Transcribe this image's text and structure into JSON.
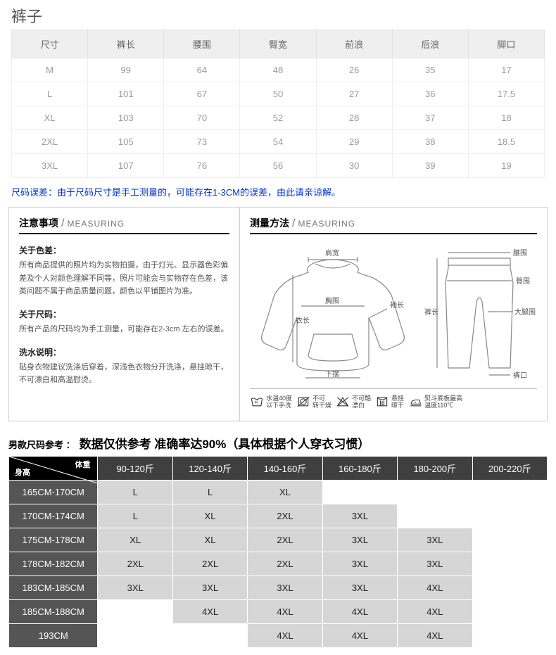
{
  "title": "裤子",
  "sizeTable": {
    "headers": [
      "尺寸",
      "裤长",
      "腰围",
      "臀宽",
      "前浪",
      "后浪",
      "脚口"
    ],
    "rows": [
      [
        "M",
        "99",
        "64",
        "48",
        "26",
        "35",
        "17"
      ],
      [
        "L",
        "101",
        "67",
        "50",
        "27",
        "36",
        "17.5"
      ],
      [
        "XL",
        "103",
        "70",
        "52",
        "28",
        "37",
        "18"
      ],
      [
        "2XL",
        "105",
        "73",
        "54",
        "29",
        "38",
        "18.5"
      ],
      [
        "3XL",
        "107",
        "76",
        "56",
        "30",
        "39",
        "19"
      ]
    ]
  },
  "note": "尺码误差：由于尺码尺寸是手工测量的，可能存在1-3CM的误差，由此请亲谅解。",
  "measuring": {
    "left": {
      "header_cn": "注意事项",
      "header_en": "MEASURING",
      "paras": [
        {
          "title": "关于色差：",
          "body": "所有商品提供的照片均为实物拍摄，由于灯光、显示器色彩偏差及个人对颜色理解不同等，照片可能会与实物存在色差，该类问题不属于商品质量问题，颜色以平铺图片为准。"
        },
        {
          "title": "关于尺码：",
          "body": "所有产品的尺码均为手工测量，可能存在2-3cm  左右的误差。"
        },
        {
          "title": "洗水说明：",
          "body": "贴身衣物建议洗涤后穿着，深浅色衣物分开洗涤，悬挂晾干，不可漂白和高温慰烫。"
        }
      ]
    },
    "right": {
      "header_cn": "测量方法",
      "header_en": "MEASURING",
      "top_labels": {
        "shoulder": "肩宽",
        "sleeve": "袖长",
        "chest": "胸围",
        "length": "衣长",
        "hem": "下摆",
        "waist": "腰围",
        "hip": "臀围",
        "thigh": "大腿围",
        "pant_len": "裤长",
        "cuff": "裤口"
      },
      "care": [
        {
          "icon": "wash",
          "text1": "水温40度",
          "text2": "以下手洗"
        },
        {
          "icon": "dry",
          "text1": "不可",
          "text2": "转干燥"
        },
        {
          "icon": "bleach",
          "text1": "不可酷",
          "text2": "漂白"
        },
        {
          "icon": "hang",
          "text1": "悬挂",
          "text2": "晾干"
        },
        {
          "icon": "iron",
          "text1": "熨斗底板最高",
          "text2": "温度110℃"
        }
      ]
    }
  },
  "ref": {
    "title_sm": "男款尺码参考 ：",
    "title_lg": "数据仅供参考  准确率达90%（具体根据个人穿衣习惯）",
    "corner_top": "体重",
    "corner_bottom": "身高",
    "weight_headers": [
      "90-120斤",
      "120-140斤",
      "140-160斤",
      "160-180斤",
      "180-200斤",
      "200-220斤"
    ],
    "rows": [
      {
        "h": "165CM-170CM",
        "cells": [
          {
            "v": "L",
            "c": "g"
          },
          {
            "v": "L",
            "c": "g"
          },
          {
            "v": "XL",
            "c": "g"
          },
          {
            "v": "",
            "c": "w"
          },
          {
            "v": "",
            "c": "w"
          },
          {
            "v": "",
            "c": "w"
          }
        ]
      },
      {
        "h": "170CM-174CM",
        "cells": [
          {
            "v": "L",
            "c": "g"
          },
          {
            "v": "XL",
            "c": "g"
          },
          {
            "v": "2XL",
            "c": "g"
          },
          {
            "v": "3XL",
            "c": "g"
          },
          {
            "v": "",
            "c": "w"
          },
          {
            "v": "",
            "c": "w"
          }
        ]
      },
      {
        "h": "175CM-178CM",
        "cells": [
          {
            "v": "XL",
            "c": "g"
          },
          {
            "v": "XL",
            "c": "g"
          },
          {
            "v": "2XL",
            "c": "g"
          },
          {
            "v": "3XL",
            "c": "g"
          },
          {
            "v": "3XL",
            "c": "g"
          },
          {
            "v": "",
            "c": "w"
          }
        ]
      },
      {
        "h": "178CM-182CM",
        "cells": [
          {
            "v": "2XL",
            "c": "g"
          },
          {
            "v": "2XL",
            "c": "g"
          },
          {
            "v": "2XL",
            "c": "g"
          },
          {
            "v": "3XL",
            "c": "g"
          },
          {
            "v": "3XL",
            "c": "g"
          },
          {
            "v": "",
            "c": "w"
          }
        ]
      },
      {
        "h": "183CM-185CM",
        "cells": [
          {
            "v": "3XL",
            "c": "g"
          },
          {
            "v": "3XL",
            "c": "g"
          },
          {
            "v": "3XL",
            "c": "g"
          },
          {
            "v": "3XL",
            "c": "g"
          },
          {
            "v": "4XL",
            "c": "g"
          },
          {
            "v": "",
            "c": "w"
          }
        ]
      },
      {
        "h": "185CM-188CM",
        "cells": [
          {
            "v": "",
            "c": "w"
          },
          {
            "v": "4XL",
            "c": "g"
          },
          {
            "v": "4XL",
            "c": "g"
          },
          {
            "v": "4XL",
            "c": "g"
          },
          {
            "v": "4XL",
            "c": "g"
          },
          {
            "v": "",
            "c": "w"
          }
        ]
      },
      {
        "h": "193CM",
        "cells": [
          {
            "v": "",
            "c": "w"
          },
          {
            "v": "",
            "c": "w"
          },
          {
            "v": "4XL",
            "c": "g"
          },
          {
            "v": "4XL",
            "c": "g"
          },
          {
            "v": "4XL",
            "c": "g"
          },
          {
            "v": "",
            "c": "w"
          }
        ]
      }
    ]
  }
}
